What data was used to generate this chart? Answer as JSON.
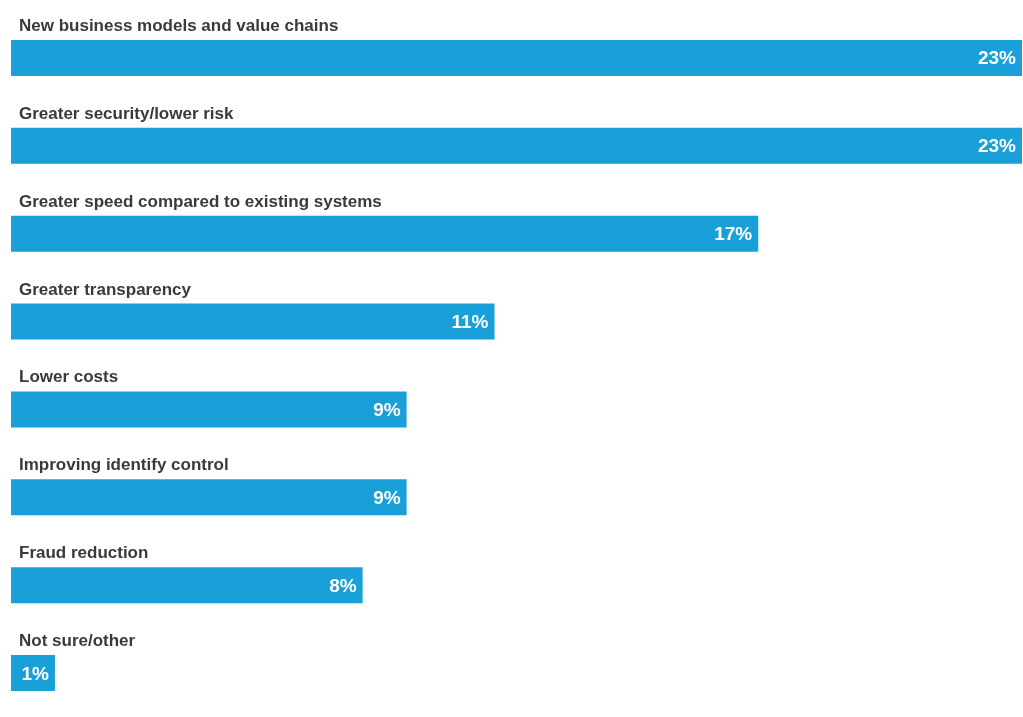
{
  "chart_data": {
    "type": "bar",
    "orientation": "horizontal",
    "categories": [
      "New business models and value chains",
      "Greater security/lower risk",
      "Greater speed compared to existing systems",
      "Greater transparency",
      "Lower costs",
      "Improving identify control",
      "Fraud reduction",
      "Not sure/other"
    ],
    "values": [
      23,
      23,
      17,
      11,
      9,
      9,
      8,
      1
    ],
    "value_labels": [
      "23%",
      "23%",
      "17%",
      "11%",
      "9%",
      "9%",
      "8%",
      "1%"
    ],
    "color": "#1aa0d8"
  }
}
